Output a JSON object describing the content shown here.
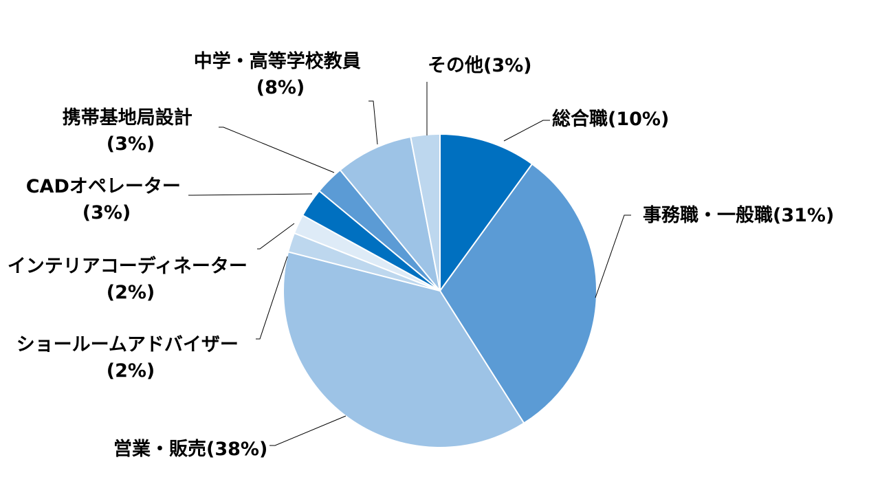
{
  "chart_data": {
    "type": "pie",
    "title": "",
    "legend": "none",
    "slices": [
      {
        "name": "総合職",
        "pct": "(10%)",
        "value": 10,
        "color": "#0070c0"
      },
      {
        "name": "事務職・一般職",
        "pct": "(31%)",
        "value": 31,
        "color": "#5b9bd5"
      },
      {
        "name": "営業・販売",
        "pct": "(38%)",
        "value": 38,
        "color": "#9dc3e6"
      },
      {
        "name": "ショールームアドバイザー",
        "pct": "(2%)",
        "value": 2,
        "color": "#bdd7ee"
      },
      {
        "name": "インテリアコーディネーター",
        "pct": "(2%)",
        "value": 2,
        "color": "#deebf7"
      },
      {
        "name": "CADオペレーター",
        "pct": "(3%)",
        "value": 3,
        "color": "#0070c0"
      },
      {
        "name": "携帯基地局設計",
        "pct": "(3%)",
        "value": 3,
        "color": "#5b9bd5"
      },
      {
        "name": "中学・高等学校教員",
        "pct": "(8%)",
        "value": 8,
        "color": "#9dc3e6"
      },
      {
        "name": "その他",
        "pct": "(3%)",
        "value": 3,
        "color": "#bdd7ee"
      }
    ]
  }
}
